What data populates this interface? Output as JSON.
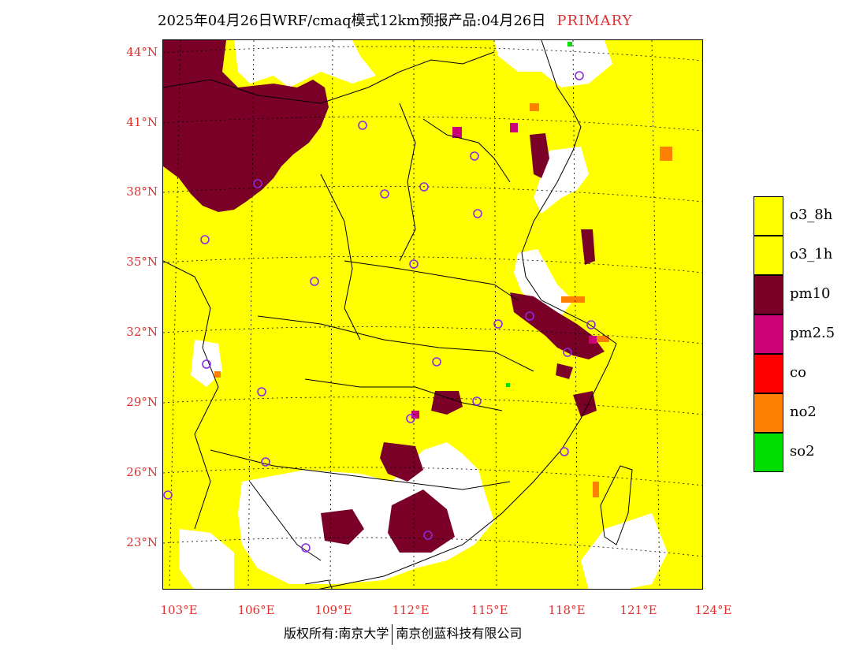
{
  "title": {
    "text": "2025年04月26日WRF/cmaq模式12km预报产品:04月26日",
    "tag": "PRIMARY"
  },
  "axes": {
    "lat_labels": [
      "44°N",
      "41°N",
      "38°N",
      "35°N",
      "32°N",
      "29°N",
      "26°N",
      "23°N"
    ],
    "lon_labels": [
      "103°E",
      "106°E",
      "109°E",
      "112°E",
      "115°E",
      "118°E",
      "121°E",
      "124°E"
    ]
  },
  "legend": [
    {
      "label": "o3_8h",
      "color": "#ffff00"
    },
    {
      "label": "o3_1h",
      "color": "#ffff00"
    },
    {
      "label": "pm10",
      "color": "#7a0028"
    },
    {
      "label": "pm2.5",
      "color": "#cc0077"
    },
    {
      "label": "co",
      "color": "#ff0000"
    },
    {
      "label": "no2",
      "color": "#ff7f00"
    },
    {
      "label": "so2",
      "color": "#00dd00"
    }
  ],
  "colors": {
    "o3": "#ffff00",
    "pm10": "#7a0028",
    "pm25": "#cc0077",
    "no2": "#ff7f00",
    "so2": "#00dd00",
    "none": "#ffffff",
    "label_red": "#e03030",
    "station_marker": "#8a2be2"
  },
  "copyright": {
    "left": "版权所有:南京大学",
    "right": "南京创蓝科技有限公司"
  }
}
